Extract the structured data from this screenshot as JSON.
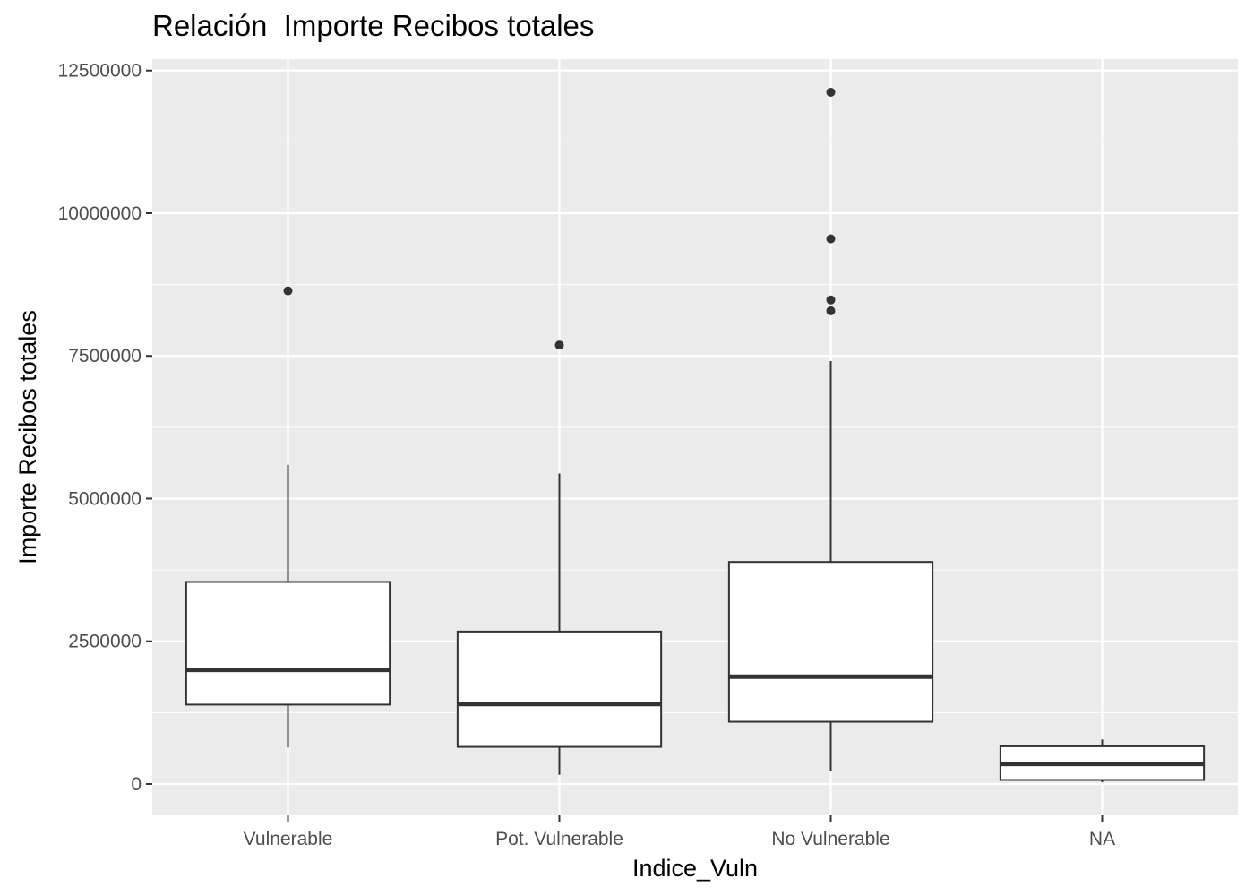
{
  "chart_data": {
    "type": "boxplot",
    "title": "Relación  Importe Recibos totales",
    "xlabel": "Indice_Vuln",
    "ylabel": "Importe Recibos totales",
    "ylim": [
      -550000,
      12700000
    ],
    "yticks": [
      0,
      2500000,
      5000000,
      7500000,
      10000000,
      12500000
    ],
    "ytick_labels": [
      "0",
      "2500000",
      "5000000",
      "7500000",
      "10000000",
      "12500000"
    ],
    "grid": true,
    "categories": [
      "Vulnerable",
      "Pot. Vulnerable",
      "No Vulnerable",
      "NA"
    ],
    "boxes": [
      {
        "category": "Vulnerable",
        "lower_whisker": 640000,
        "q1": 1390000,
        "median": 2000000,
        "q3": 3540000,
        "upper_whisker": 5590000,
        "outliers": [
          8640000
        ]
      },
      {
        "category": "Pot. Vulnerable",
        "lower_whisker": 160000,
        "q1": 650000,
        "median": 1400000,
        "q3": 2670000,
        "upper_whisker": 5440000,
        "outliers": [
          7690000
        ]
      },
      {
        "category": "No Vulnerable",
        "lower_whisker": 220000,
        "q1": 1090000,
        "median": 1880000,
        "q3": 3890000,
        "upper_whisker": 7410000,
        "outliers": [
          8290000,
          8480000,
          9550000,
          12120000
        ]
      },
      {
        "category": "NA",
        "lower_whisker": 30000,
        "q1": 70000,
        "median": 350000,
        "q3": 660000,
        "upper_whisker": 780000,
        "outliers": []
      }
    ],
    "colors": {
      "panel_bg": "#ebebeb",
      "grid": "#ffffff",
      "box_fill": "#ffffff",
      "box_line": "#333333",
      "tick_text": "#4d4d4d"
    }
  }
}
